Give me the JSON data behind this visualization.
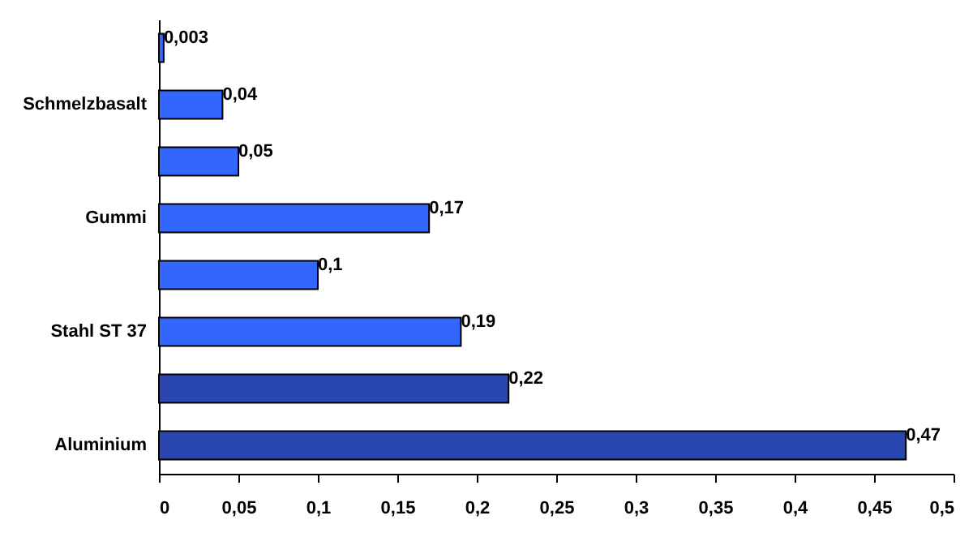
{
  "chart_data": {
    "type": "bar",
    "orientation": "horizontal",
    "categories": [
      null,
      "Schmelzbasalt",
      null,
      "Gummi",
      null,
      "Stahl ST 37",
      null,
      "Aluminium"
    ],
    "values": [
      0.003,
      0.04,
      0.05,
      0.17,
      0.1,
      0.19,
      0.22,
      0.47
    ],
    "value_labels": [
      "0,003",
      "0,04",
      "0,05",
      "0,17",
      "0,1",
      "0,19",
      "0,22",
      "0,47"
    ],
    "colors": [
      "#3366ff",
      "#3366ff",
      "#3366ff",
      "#3366ff",
      "#3366ff",
      "#3366ff",
      "#2a46b0",
      "#2a46b0"
    ],
    "xlim": [
      0,
      0.5
    ],
    "xticks": [
      0,
      {
        "value": 0.05,
        "label": "0,05"
      },
      {
        "value": 0.1,
        "label": "0,1"
      },
      {
        "value": 0.15,
        "label": "0,15"
      },
      {
        "value": 0.2,
        "label": "0,2"
      },
      {
        "value": 0.25,
        "label": "0,25"
      },
      {
        "value": 0.3,
        "label": "0,3"
      },
      {
        "value": 0.35,
        "label": "0,35"
      },
      {
        "value": 0.4,
        "label": "0,4"
      },
      {
        "value": 0.45,
        "label": "0,45"
      },
      {
        "value": 0.5,
        "label": "0,5"
      }
    ]
  }
}
